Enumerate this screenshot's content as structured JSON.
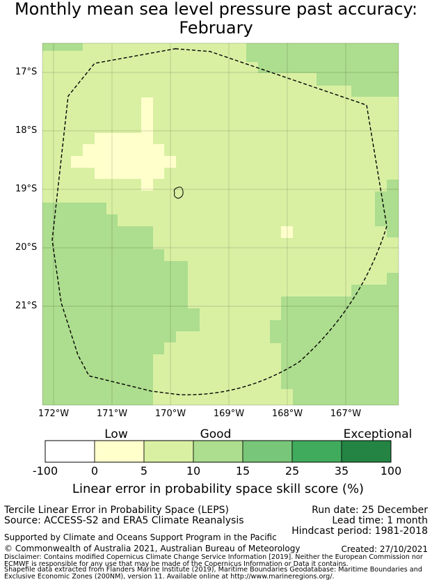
{
  "title": {
    "line1": "Monthly mean sea level pressure past accuracy:",
    "line2": "February"
  },
  "map": {
    "lat_labels": [
      "17°S",
      "18°S",
      "19°S",
      "20°S",
      "21°S"
    ],
    "lon_labels": [
      "172°W",
      "171°W",
      "170°W",
      "169°W",
      "168°W",
      "167°W"
    ],
    "extent": {
      "lon_min": -172.2,
      "lon_max": -166.1,
      "lat_min": -22.6,
      "lat_max": -16.5
    },
    "colors": {
      "low": "#ffffcc",
      "good": "#d9f0a3",
      "good2": "#addd8e",
      "very_good": "#78c679",
      "very_good2": "#41ab5d",
      "exceptional": "#238443"
    }
  },
  "colorbar": {
    "categories": [
      "Low",
      "Good",
      "Exceptional"
    ],
    "ticks": [
      "-100",
      "0",
      "5",
      "10",
      "15",
      "25",
      "35",
      "100"
    ],
    "colors": [
      "#ffffff",
      "#ffffcc",
      "#d9f0a3",
      "#addd8e",
      "#78c679",
      "#41ab5d",
      "#238443"
    ],
    "title": "Linear error in probability space skill score (%)"
  },
  "info": {
    "method": "Tercile Linear Error in Probability Space (LEPS)",
    "source": "Source: ACCESS-S2 and ERA5 Climate Reanalysis",
    "run_date": "Run date: 25 December",
    "lead_time": "Lead time: 1 month",
    "hindcast": "Hindcast period: 1981-2018",
    "support": "Supported by Climate and Oceans Support Program in the Pacific",
    "copyright": "© Commonwealth of Australia 2021, Australian Bureau of Meteorology",
    "created": "Created: 27/10/2021",
    "disclaimer1": "Disclaimer: Contains modified Copernicus Climate Change Service Information [2019]. Neither the European Commission nor",
    "disclaimer2": "ECMWF is responsible for any use that may be made of the Copernicus Information or Data it contains.",
    "disclaimer3": "Shapefile data extracted from Flanders Marine Institute (2019), Maritime Boundaries Geodatabase: Maritime Boundaries and",
    "disclaimer4": "Exclusive Economic Zones (200NM), version 11. Available online at http://www.marineregions.org/."
  }
}
